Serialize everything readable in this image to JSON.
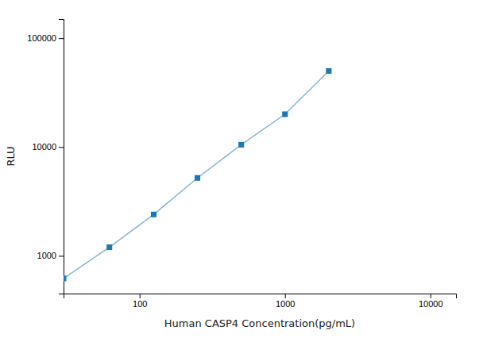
{
  "chart_data": {
    "type": "line",
    "xlabel": "Human CASP4 Concentration(pg/mL)",
    "ylabel": "RLU",
    "x": [
      30,
      62,
      125,
      250,
      500,
      1000,
      2000
    ],
    "values": [
      620,
      1200,
      2400,
      5200,
      10500,
      20000,
      50000
    ],
    "xlim": [
      30,
      15000
    ],
    "ylim": [
      450,
      150000
    ],
    "xticks": [
      100,
      1000,
      10000
    ],
    "yticks": [
      1000,
      10000,
      100000
    ],
    "log": true,
    "marker": "square"
  }
}
